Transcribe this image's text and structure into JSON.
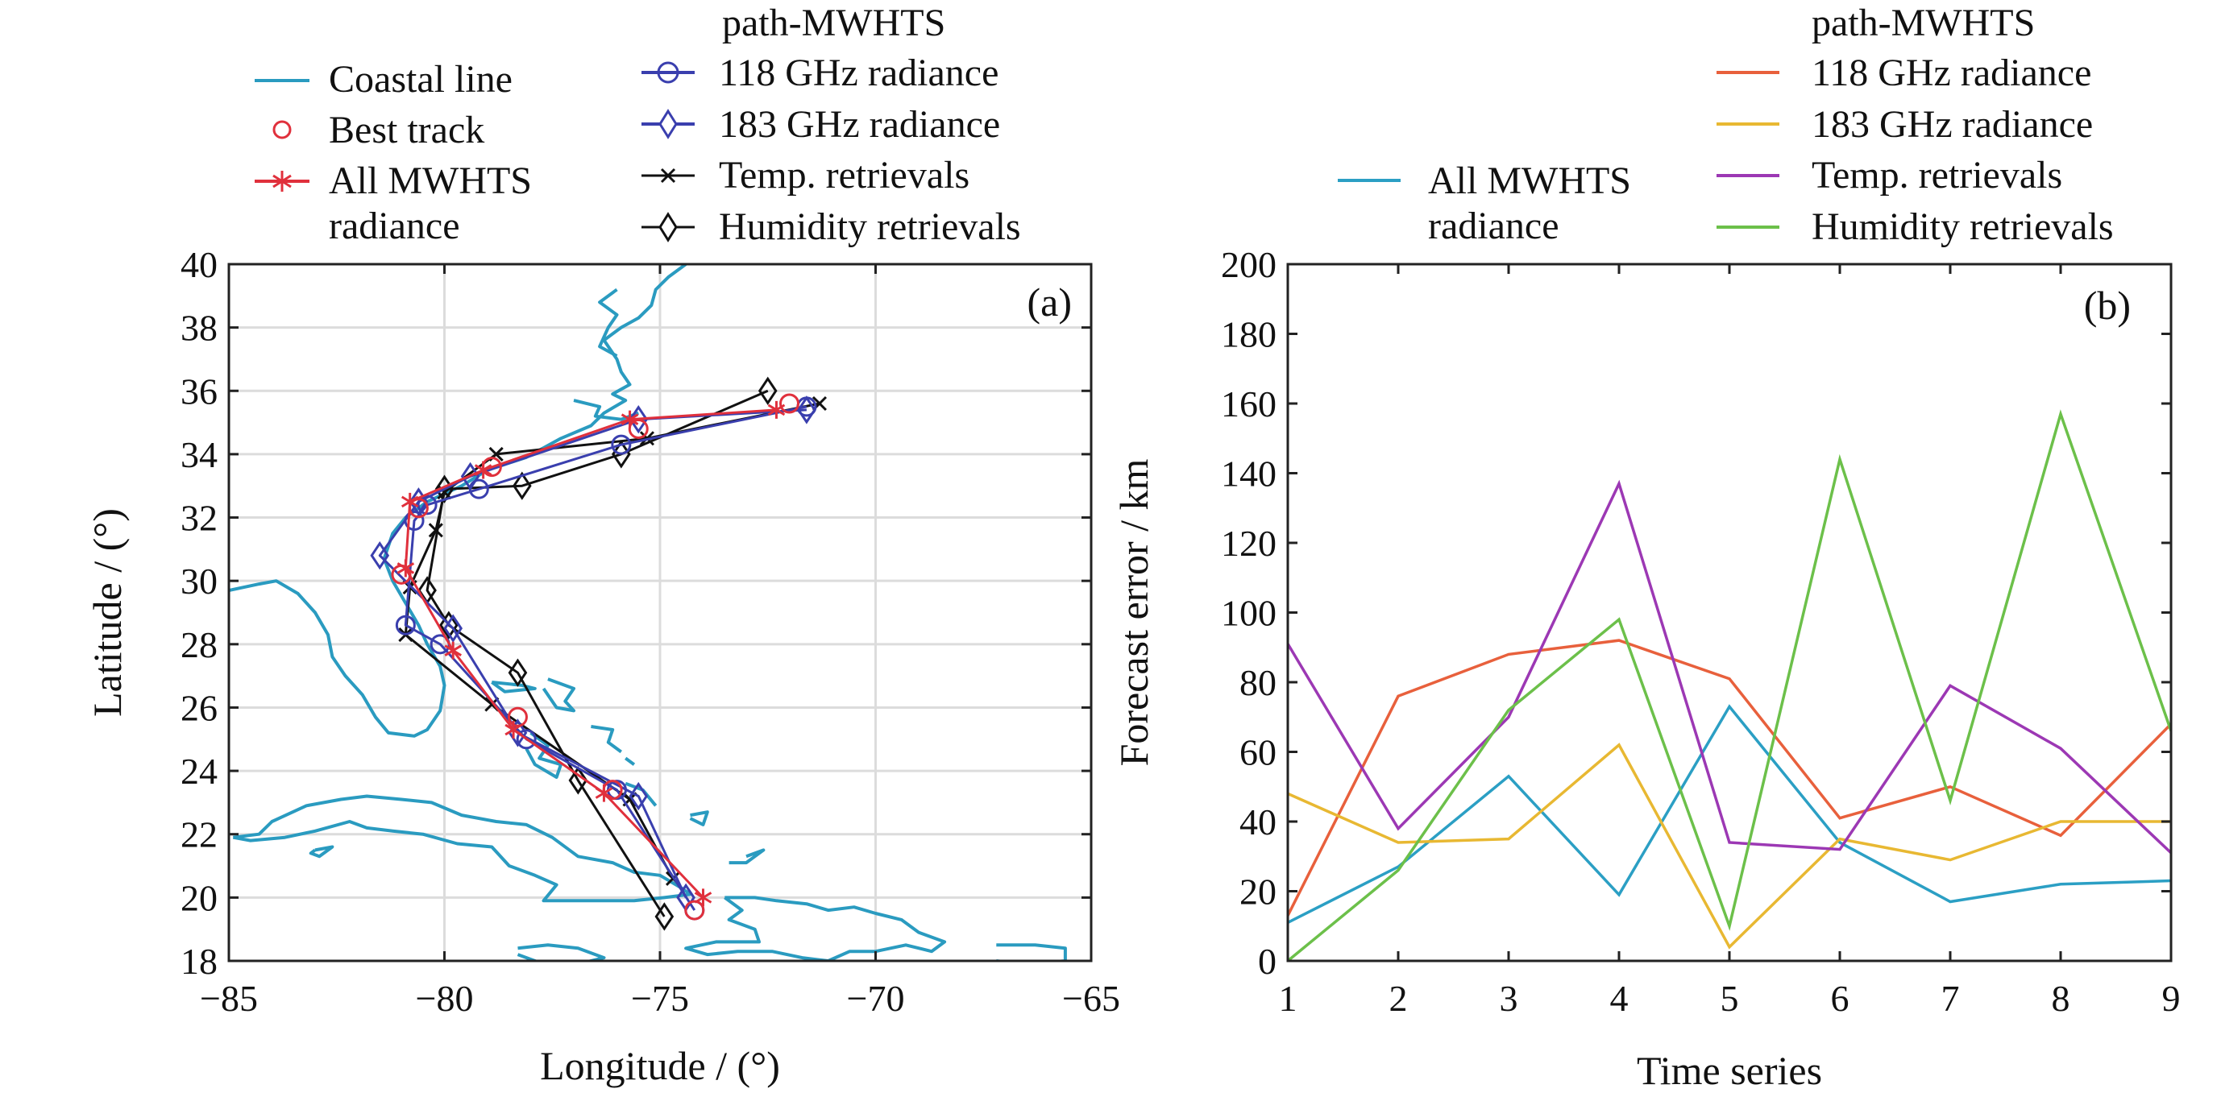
{
  "chart_data": [
    {
      "id": "a",
      "type": "line",
      "panel_label": "(a)",
      "xlabel": "Longitude / (°)",
      "ylabel": "Latitude / (°)",
      "xlim": [
        -85,
        -65
      ],
      "ylim": [
        18,
        40
      ],
      "xticks": [
        -85,
        -80,
        -75,
        -70,
        -65
      ],
      "xtick_labels": [
        "−85",
        "−80",
        "−75",
        "−70",
        "−65"
      ],
      "yticks": [
        18,
        20,
        22,
        24,
        26,
        28,
        30,
        32,
        34,
        36,
        38,
        40
      ],
      "ytick_labels": [
        "18",
        "20",
        "22",
        "24",
        "26",
        "28",
        "30",
        "32",
        "34",
        "36",
        "38",
        "40"
      ],
      "grid": true,
      "legend_title": "path-MWHTS",
      "legend_placement": "top",
      "series": [
        {
          "name": "Best track",
          "color": "#e0303c",
          "marker": "circle",
          "line": false,
          "points": [
            [
              -74.2,
              19.6
            ],
            [
              -76.1,
              23.4
            ],
            [
              -78.3,
              25.7
            ],
            [
              -81.0,
              30.2
            ],
            [
              -80.6,
              32.3
            ],
            [
              -78.9,
              33.6
            ],
            [
              -75.5,
              34.8
            ],
            [
              -72.0,
              35.6
            ]
          ]
        },
        {
          "name": "All MWHTS radiance",
          "color": "#e0303c",
          "marker": "star",
          "line": true,
          "points": [
            [
              -74.0,
              20.0
            ],
            [
              -76.3,
              23.3
            ],
            [
              -78.4,
              25.3
            ],
            [
              -79.8,
              27.8
            ],
            [
              -80.9,
              30.4
            ],
            [
              -80.8,
              32.5
            ],
            [
              -79.1,
              33.5
            ],
            [
              -75.7,
              35.1
            ],
            [
              -72.3,
              35.4
            ]
          ]
        },
        {
          "name": "118 GHz radiance",
          "color": "#3a3fae",
          "marker": "circle",
          "line": true,
          "points": [
            [
              -74.2,
              19.6
            ],
            [
              -76.0,
              23.4
            ],
            [
              -78.1,
              25.0
            ],
            [
              -80.1,
              28.0
            ],
            [
              -80.9,
              28.6
            ],
            [
              -80.7,
              31.9
            ],
            [
              -80.4,
              32.4
            ],
            [
              -79.2,
              32.9
            ],
            [
              -75.9,
              34.3
            ],
            [
              -71.6,
              35.5
            ]
          ]
        },
        {
          "name": "183 GHz radiance",
          "color": "#3a3fae",
          "marker": "diamond",
          "line": true,
          "points": [
            [
              -74.4,
              20.0
            ],
            [
              -75.5,
              23.2
            ],
            [
              -78.3,
              25.2
            ],
            [
              -79.8,
              28.5
            ],
            [
              -81.5,
              30.8
            ],
            [
              -80.6,
              32.5
            ],
            [
              -79.4,
              33.3
            ],
            [
              -75.5,
              35.1
            ],
            [
              -71.6,
              35.4
            ]
          ]
        },
        {
          "name": "Temp. retrievals",
          "color": "#111111",
          "marker": "x",
          "line": true,
          "points": [
            [
              -74.7,
              20.6
            ],
            [
              -75.7,
              23.1
            ],
            [
              -78.9,
              26.1
            ],
            [
              -80.9,
              28.3
            ],
            [
              -80.8,
              29.8
            ],
            [
              -80.2,
              31.6
            ],
            [
              -80.0,
              32.8
            ],
            [
              -78.8,
              34.0
            ],
            [
              -75.3,
              34.5
            ],
            [
              -71.3,
              35.6
            ]
          ]
        },
        {
          "name": "Humidity retrievals",
          "color": "#111111",
          "marker": "diamond",
          "line": true,
          "points": [
            [
              -74.9,
              19.4
            ],
            [
              -76.9,
              23.7
            ],
            [
              -78.3,
              27.1
            ],
            [
              -79.9,
              28.6
            ],
            [
              -80.4,
              29.7
            ],
            [
              -80.0,
              32.9
            ],
            [
              -78.2,
              33.0
            ],
            [
              -75.9,
              34.0
            ],
            [
              -72.5,
              36.0
            ]
          ]
        }
      ],
      "coast_color": "#2a9bc0",
      "coast_lines": [
        [
          [
            -85,
            29.7
          ],
          [
            -84.3,
            29.9
          ],
          [
            -83.9,
            30.0
          ],
          [
            -83.4,
            29.6
          ],
          [
            -83.0,
            29.0
          ],
          [
            -82.7,
            28.3
          ],
          [
            -82.6,
            27.6
          ],
          [
            -82.3,
            27.0
          ],
          [
            -81.9,
            26.4
          ],
          [
            -81.6,
            25.7
          ],
          [
            -81.3,
            25.2
          ],
          [
            -80.7,
            25.1
          ],
          [
            -80.4,
            25.3
          ],
          [
            -80.1,
            25.9
          ],
          [
            -80.0,
            26.7
          ],
          [
            -80.1,
            27.3
          ],
          [
            -80.4,
            28.0
          ],
          [
            -80.6,
            28.6
          ],
          [
            -80.9,
            29.3
          ],
          [
            -81.2,
            30.0
          ],
          [
            -81.4,
            30.7
          ],
          [
            -81.2,
            31.5
          ],
          [
            -80.9,
            32.0
          ],
          [
            -80.4,
            32.5
          ],
          [
            -79.6,
            33.0
          ],
          [
            -79.0,
            33.5
          ],
          [
            -78.1,
            33.9
          ],
          [
            -77.3,
            34.5
          ],
          [
            -76.6,
            34.9
          ],
          [
            -76.3,
            35.3
          ],
          [
            -75.8,
            35.7
          ],
          [
            -76.1,
            35.9
          ],
          [
            -75.7,
            36.2
          ],
          [
            -75.9,
            36.6
          ],
          [
            -76.0,
            37.0
          ],
          [
            -76.3,
            37.6
          ],
          [
            -75.9,
            38.0
          ],
          [
            -75.5,
            38.3
          ],
          [
            -75.2,
            38.7
          ],
          [
            -75.1,
            39.2
          ],
          [
            -74.8,
            39.6
          ],
          [
            -74.4,
            40.0
          ]
        ],
        [
          [
            -76.0,
            39.2
          ],
          [
            -76.4,
            38.8
          ],
          [
            -76.0,
            38.4
          ],
          [
            -76.2,
            38.0
          ],
          [
            -76.4,
            37.4
          ],
          [
            -76.0,
            37.1
          ]
        ],
        [
          [
            -77.0,
            35.7
          ],
          [
            -76.4,
            35.5
          ],
          [
            -76.5,
            35.2
          ],
          [
            -75.9,
            35.1
          ],
          [
            -75.5,
            35.3
          ]
        ],
        [
          [
            -84.9,
            21.9
          ],
          [
            -84.3,
            22.0
          ],
          [
            -84.0,
            22.4
          ],
          [
            -83.2,
            22.9
          ],
          [
            -82.4,
            23.1
          ],
          [
            -81.8,
            23.2
          ],
          [
            -81.0,
            23.1
          ],
          [
            -80.3,
            23.0
          ],
          [
            -79.6,
            22.6
          ],
          [
            -78.8,
            22.4
          ],
          [
            -78.1,
            22.3
          ],
          [
            -77.5,
            21.9
          ],
          [
            -76.9,
            21.3
          ],
          [
            -76.1,
            21.1
          ],
          [
            -75.6,
            20.8
          ],
          [
            -75.0,
            20.7
          ],
          [
            -74.5,
            20.3
          ],
          [
            -74.3,
            20.1
          ],
          [
            -74.9,
            20.0
          ],
          [
            -75.6,
            19.9
          ],
          [
            -76.4,
            19.9
          ],
          [
            -77.1,
            19.9
          ],
          [
            -77.7,
            19.9
          ],
          [
            -77.4,
            20.4
          ],
          [
            -77.9,
            20.7
          ],
          [
            -78.5,
            21.0
          ],
          [
            -78.9,
            21.6
          ],
          [
            -79.7,
            21.7
          ],
          [
            -80.5,
            22.0
          ],
          [
            -81.2,
            22.1
          ],
          [
            -81.8,
            22.2
          ],
          [
            -82.2,
            22.4
          ],
          [
            -83.0,
            22.1
          ],
          [
            -83.7,
            21.9
          ],
          [
            -84.5,
            21.8
          ],
          [
            -84.9,
            21.9
          ]
        ],
        [
          [
            -83.0,
            21.5
          ],
          [
            -82.6,
            21.6
          ],
          [
            -82.9,
            21.3
          ],
          [
            -83.1,
            21.4
          ],
          [
            -83.0,
            21.5
          ]
        ],
        [
          [
            -78.9,
            26.8
          ],
          [
            -78.2,
            26.7
          ],
          [
            -77.9,
            26.6
          ],
          [
            -78.6,
            26.5
          ],
          [
            -78.9,
            26.8
          ]
        ],
        [
          [
            -77.6,
            26.9
          ],
          [
            -77.0,
            26.6
          ],
          [
            -77.2,
            26.2
          ],
          [
            -77.0,
            25.9
          ],
          [
            -77.4,
            26.0
          ],
          [
            -77.7,
            26.6
          ]
        ],
        [
          [
            -78.0,
            25.2
          ],
          [
            -77.6,
            24.8
          ],
          [
            -77.8,
            24.4
          ],
          [
            -77.3,
            24.2
          ],
          [
            -77.4,
            23.8
          ],
          [
            -77.9,
            24.2
          ],
          [
            -78.1,
            24.7
          ]
        ],
        [
          [
            -76.6,
            25.4
          ],
          [
            -76.1,
            25.3
          ],
          [
            -76.2,
            24.9
          ],
          [
            -75.9,
            24.6
          ]
        ],
        [
          [
            -75.8,
            24.4
          ],
          [
            -75.6,
            24.2
          ]
        ],
        [
          [
            -75.8,
            23.6
          ],
          [
            -75.4,
            23.4
          ],
          [
            -75.1,
            22.9
          ]
        ],
        [
          [
            -74.3,
            22.6
          ],
          [
            -73.9,
            22.7
          ],
          [
            -74.0,
            22.3
          ],
          [
            -74.3,
            22.5
          ]
        ],
        [
          [
            -73.0,
            21.3
          ],
          [
            -72.6,
            21.5
          ],
          [
            -73.0,
            21.1
          ],
          [
            -73.4,
            21.1
          ]
        ],
        [
          [
            -73.5,
            20.0
          ],
          [
            -72.8,
            20.0
          ],
          [
            -72.3,
            19.9
          ],
          [
            -71.6,
            19.8
          ],
          [
            -71.1,
            19.6
          ],
          [
            -70.5,
            19.7
          ],
          [
            -70.0,
            19.5
          ],
          [
            -69.4,
            19.3
          ],
          [
            -69.0,
            18.9
          ],
          [
            -68.4,
            18.6
          ],
          [
            -68.7,
            18.3
          ],
          [
            -69.3,
            18.5
          ],
          [
            -70.0,
            18.3
          ],
          [
            -70.6,
            18.3
          ],
          [
            -71.1,
            18.0
          ],
          [
            -71.7,
            18.1
          ],
          [
            -72.4,
            18.3
          ],
          [
            -73.2,
            18.3
          ],
          [
            -73.9,
            18.2
          ],
          [
            -74.4,
            18.4
          ],
          [
            -73.7,
            18.6
          ],
          [
            -72.7,
            18.6
          ],
          [
            -72.8,
            19.0
          ],
          [
            -73.4,
            19.3
          ],
          [
            -73.1,
            19.6
          ],
          [
            -73.5,
            20.0
          ]
        ],
        [
          [
            -78.3,
            18.4
          ],
          [
            -77.6,
            18.5
          ],
          [
            -76.9,
            18.4
          ],
          [
            -76.3,
            18.1
          ],
          [
            -76.9,
            17.9
          ],
          [
            -77.7,
            17.9
          ],
          [
            -78.3,
            18.2
          ]
        ],
        [
          [
            -67.2,
            18.5
          ],
          [
            -66.3,
            18.5
          ],
          [
            -65.6,
            18.4
          ],
          [
            -65.6,
            18.0
          ],
          [
            -66.5,
            17.9
          ],
          [
            -67.2,
            18.0
          ]
        ]
      ]
    },
    {
      "id": "b",
      "type": "line",
      "panel_label": "(b)",
      "xlabel": "Time series",
      "ylabel": "Forecast error / km",
      "xlim": [
        1,
        9
      ],
      "ylim": [
        0,
        200
      ],
      "x": [
        1,
        2,
        3,
        4,
        5,
        6,
        7,
        8,
        9
      ],
      "xtick_labels": [
        "1",
        "2",
        "3",
        "4",
        "5",
        "6",
        "7",
        "8",
        "9"
      ],
      "yticks": [
        0,
        20,
        40,
        60,
        80,
        100,
        120,
        140,
        160,
        180,
        200
      ],
      "ytick_labels": [
        "0",
        "20",
        "40",
        "60",
        "80",
        "100",
        "120",
        "140",
        "160",
        "180",
        "200"
      ],
      "grid": false,
      "legend_title": "path-MWHTS",
      "legend_placement": "top",
      "series": [
        {
          "name": "All MWHTS radiance",
          "color": "#2b9fc4",
          "values": [
            11,
            27,
            53,
            19,
            73,
            34,
            17,
            22,
            23
          ]
        },
        {
          "name": "118 GHz radiance",
          "color": "#e8603c",
          "values": [
            13,
            76,
            88,
            92,
            81,
            41,
            50,
            36,
            68
          ]
        },
        {
          "name": "183 GHz radiance",
          "color": "#e8b832",
          "values": [
            48,
            34,
            35,
            62,
            4,
            35,
            29,
            40,
            40
          ]
        },
        {
          "name": "Temp. retrievals",
          "color": "#9c38b4",
          "values": [
            91,
            38,
            70,
            137,
            34,
            32,
            79,
            61,
            31
          ]
        },
        {
          "name": "Humidity retrievals",
          "color": "#6cc04a",
          "values": [
            0,
            26,
            72,
            98,
            10,
            144,
            46,
            157,
            66
          ]
        }
      ]
    }
  ],
  "legend_a": {
    "left": [
      "Coastal line",
      "Best track",
      "All MWHTS",
      "radiance"
    ],
    "title": "path-MWHTS",
    "right": [
      "118 GHz radiance",
      "183 GHz radiance",
      "Temp. retrievals",
      "Humidity retrievals"
    ]
  },
  "legend_b": {
    "left": [
      "All MWHTS",
      "radiance"
    ],
    "title": "path-MWHTS",
    "right": [
      "118 GHz radiance",
      "183 GHz radiance",
      "Temp. retrievals",
      "Humidity retrievals"
    ]
  }
}
